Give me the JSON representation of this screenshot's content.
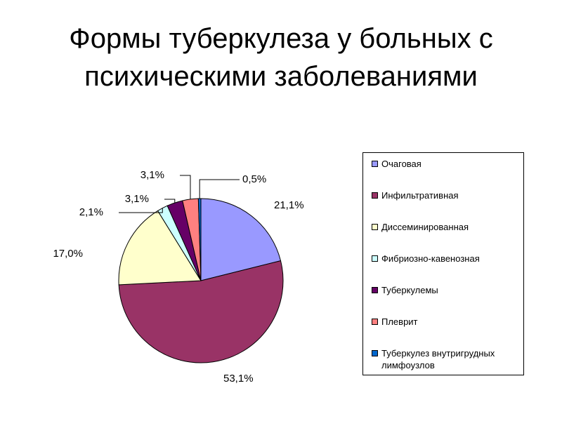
{
  "chart_data": {
    "type": "pie",
    "title": "Формы туберкулеза у больных с психическими заболеваниями",
    "categories": [
      "Очаговая",
      "Инфильтративная",
      "Диссеминированная",
      "Фибриозно-кавенозная",
      "Туберкулемы",
      "Плеврит",
      "Туберкулез внутригрудных лимфоузлов"
    ],
    "values": [
      21.1,
      53.1,
      17.0,
      2.1,
      3.1,
      3.1,
      0.5
    ],
    "value_labels": [
      "21,1%",
      "53,1%",
      "17,0%",
      "2,1%",
      "3,1%",
      "3,1%",
      "0,5%"
    ],
    "colors": [
      "#9999ff",
      "#993366",
      "#ffffcc",
      "#ccffff",
      "#660066",
      "#ff8080",
      "#0066cc"
    ],
    "legend": "right"
  }
}
